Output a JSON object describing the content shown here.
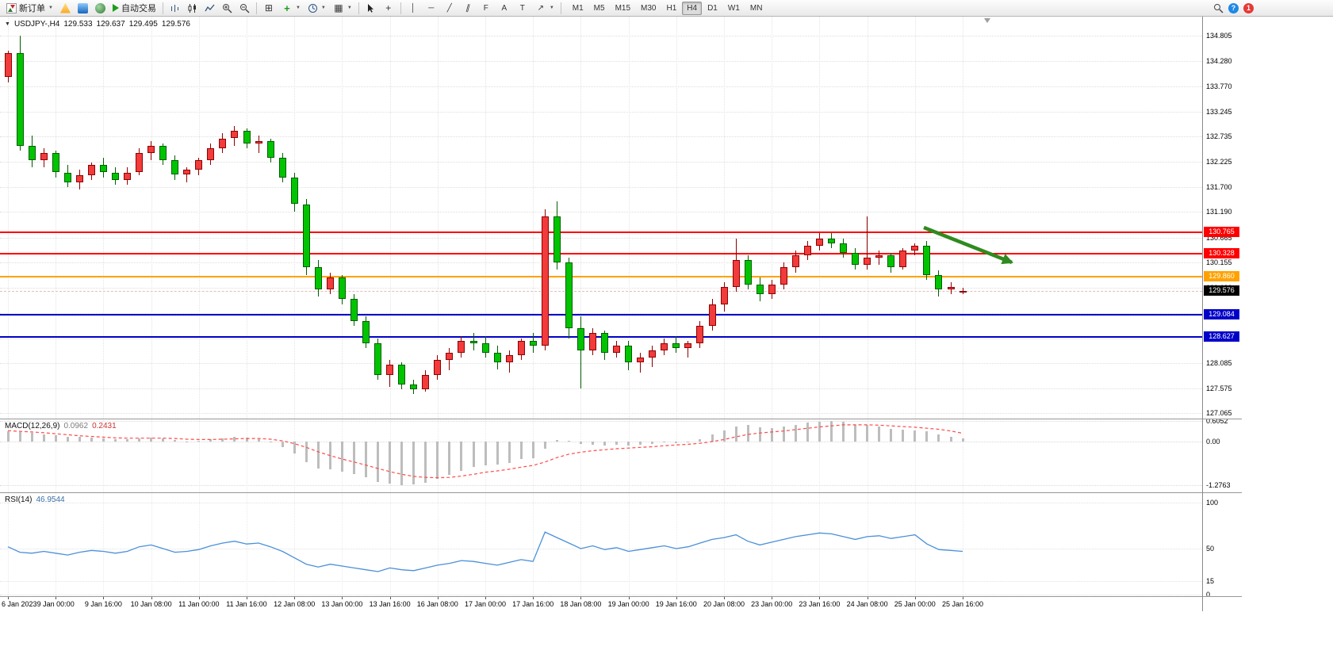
{
  "toolbar": {
    "new_order_label": "新订单",
    "autotrading_label": "自动交易",
    "timeframes": [
      "M1",
      "M5",
      "M15",
      "M30",
      "H1",
      "H4",
      "D1",
      "W1",
      "MN"
    ],
    "active_timeframe": "H4",
    "help_glyph": "?",
    "notification_count": "1"
  },
  "chart_header": {
    "symbol_period": "USDJPY-,H4",
    "open": "129.533",
    "high": "129.637",
    "low": "129.495",
    "close": "129.576"
  },
  "panels": {
    "macd": {
      "label": "MACD(12,26,9)",
      "main_value": "0.0962",
      "signal_value": "0.2431"
    },
    "rsi": {
      "label": "RSI(14)",
      "value": "46.9544"
    }
  },
  "chart_data": {
    "type": "candlestick",
    "symbol": "USDJPY-",
    "period": "H4",
    "up_color": "#f23b3b",
    "down_color": "#00c400",
    "price_axis_labels": [
      "134.805",
      "134.280",
      "133.770",
      "133.245",
      "132.735",
      "132.225",
      "131.700",
      "131.190",
      "130.665",
      "130.155",
      "129.630",
      "129.120",
      "128.595",
      "128.085",
      "127.575",
      "127.065"
    ],
    "time_labels": [
      "6 Jan 2023",
      "9 Jan 00:00",
      "9 Jan 16:00",
      "10 Jan 08:00",
      "11 Jan 00:00",
      "11 Jan 16:00",
      "12 Jan 08:00",
      "13 Jan 00:00",
      "13 Jan 16:00",
      "16 Jan 08:00",
      "17 Jan 00:00",
      "17 Jan 16:00",
      "18 Jan 08:00",
      "19 Jan 00:00",
      "19 Jan 16:00",
      "20 Jan 08:00",
      "23 Jan 00:00",
      "23 Jan 16:00",
      "24 Jan 08:00",
      "25 Jan 00:00",
      "25 Jan 16:00"
    ],
    "candles": [
      [
        133.95,
        134.5,
        133.85,
        134.45
      ],
      [
        134.45,
        134.8,
        132.45,
        132.55
      ],
      [
        132.55,
        132.75,
        132.1,
        132.25
      ],
      [
        132.25,
        132.5,
        132.1,
        132.4
      ],
      [
        132.4,
        132.45,
        131.9,
        132.0
      ],
      [
        132.0,
        132.15,
        131.7,
        131.8
      ],
      [
        131.8,
        132.05,
        131.65,
        131.95
      ],
      [
        131.95,
        132.2,
        131.85,
        132.15
      ],
      [
        132.15,
        132.3,
        131.9,
        132.0
      ],
      [
        132.0,
        132.1,
        131.75,
        131.85
      ],
      [
        131.85,
        132.1,
        131.75,
        132.0
      ],
      [
        132.0,
        132.5,
        131.95,
        132.4
      ],
      [
        132.4,
        132.65,
        132.25,
        132.55
      ],
      [
        132.55,
        132.6,
        132.15,
        132.25
      ],
      [
        132.25,
        132.35,
        131.85,
        131.95
      ],
      [
        131.95,
        132.1,
        131.8,
        132.05
      ],
      [
        132.05,
        132.3,
        131.95,
        132.25
      ],
      [
        132.25,
        132.6,
        132.15,
        132.5
      ],
      [
        132.5,
        132.8,
        132.4,
        132.7
      ],
      [
        132.7,
        132.95,
        132.55,
        132.85
      ],
      [
        132.85,
        132.9,
        132.5,
        132.6
      ],
      [
        132.6,
        132.75,
        132.4,
        132.65
      ],
      [
        132.65,
        132.7,
        132.2,
        132.3
      ],
      [
        132.3,
        132.4,
        131.8,
        131.9
      ],
      [
        131.9,
        132.0,
        131.2,
        131.35
      ],
      [
        131.35,
        131.45,
        129.9,
        130.05
      ],
      [
        130.05,
        130.2,
        129.45,
        129.6
      ],
      [
        129.6,
        129.95,
        129.5,
        129.85
      ],
      [
        129.85,
        129.9,
        129.3,
        129.4
      ],
      [
        129.4,
        129.5,
        128.85,
        128.95
      ],
      [
        128.95,
        129.05,
        128.4,
        128.5
      ],
      [
        128.5,
        128.6,
        127.75,
        127.85
      ],
      [
        127.85,
        128.15,
        127.6,
        128.05
      ],
      [
        128.05,
        128.1,
        127.55,
        127.65
      ],
      [
        127.65,
        127.75,
        127.45,
        127.55
      ],
      [
        127.55,
        127.95,
        127.5,
        127.85
      ],
      [
        127.85,
        128.25,
        127.75,
        128.15
      ],
      [
        128.15,
        128.4,
        127.95,
        128.3
      ],
      [
        128.3,
        128.65,
        128.2,
        128.55
      ],
      [
        128.55,
        128.7,
        128.35,
        128.5
      ],
      [
        128.5,
        128.65,
        128.2,
        128.3
      ],
      [
        128.3,
        128.45,
        127.95,
        128.1
      ],
      [
        128.1,
        128.35,
        127.9,
        128.25
      ],
      [
        128.25,
        128.6,
        128.15,
        128.55
      ],
      [
        128.55,
        128.7,
        128.3,
        128.45
      ],
      [
        128.45,
        131.25,
        128.35,
        131.1
      ],
      [
        131.1,
        131.4,
        130.0,
        130.15
      ],
      [
        130.15,
        130.25,
        128.6,
        128.8
      ],
      [
        128.8,
        129.05,
        127.57,
        128.35
      ],
      [
        128.35,
        128.8,
        128.25,
        128.7
      ],
      [
        128.7,
        128.75,
        128.15,
        128.3
      ],
      [
        128.3,
        128.55,
        128.2,
        128.45
      ],
      [
        128.45,
        128.55,
        127.95,
        128.1
      ],
      [
        128.1,
        128.3,
        127.9,
        128.2
      ],
      [
        128.2,
        128.45,
        128.0,
        128.35
      ],
      [
        128.35,
        128.6,
        128.25,
        128.5
      ],
      [
        128.5,
        128.65,
        128.3,
        128.4
      ],
      [
        128.4,
        128.55,
        128.2,
        128.5
      ],
      [
        128.5,
        128.95,
        128.4,
        128.85
      ],
      [
        128.85,
        129.4,
        128.75,
        129.3
      ],
      [
        129.3,
        129.75,
        129.15,
        129.65
      ],
      [
        129.65,
        130.65,
        129.55,
        130.2
      ],
      [
        130.2,
        130.3,
        129.6,
        129.7
      ],
      [
        129.7,
        129.85,
        129.35,
        129.5
      ],
      [
        129.5,
        129.8,
        129.4,
        129.7
      ],
      [
        129.7,
        130.15,
        129.6,
        130.05
      ],
      [
        130.05,
        130.4,
        129.95,
        130.3
      ],
      [
        130.3,
        130.6,
        130.2,
        130.5
      ],
      [
        130.5,
        130.75,
        130.4,
        130.65
      ],
      [
        130.65,
        130.75,
        130.45,
        130.55
      ],
      [
        130.55,
        130.65,
        130.25,
        130.35
      ],
      [
        130.35,
        130.45,
        130.0,
        130.1
      ],
      [
        130.1,
        131.1,
        130.0,
        130.25
      ],
      [
        130.25,
        130.4,
        130.1,
        130.3
      ],
      [
        130.3,
        130.35,
        129.95,
        130.05
      ],
      [
        130.05,
        130.45,
        130.0,
        130.4
      ],
      [
        130.4,
        130.55,
        130.3,
        130.5
      ],
      [
        130.5,
        130.6,
        129.8,
        129.9
      ],
      [
        129.9,
        130.0,
        129.45,
        129.6
      ],
      [
        129.6,
        129.75,
        129.5,
        129.65
      ],
      [
        129.533,
        129.637,
        129.495,
        129.576
      ]
    ],
    "levels": [
      {
        "label": "130.765",
        "value": 130.765,
        "color": "#ff0000"
      },
      {
        "label": "130.328",
        "value": 130.328,
        "color": "#ff0000"
      },
      {
        "label": "129.860",
        "value": 129.86,
        "color": "#ffa200"
      },
      {
        "label": "129.084",
        "value": 129.084,
        "color": "#0000c8"
      },
      {
        "label": "128.627",
        "value": 128.627,
        "color": "#0000c8"
      }
    ],
    "current_price": {
      "label": "129.576",
      "value": 129.576,
      "badge_color": "#000000"
    },
    "macd": {
      "axis": [
        {
          "label": "0.6052",
          "value": 0.6052
        },
        {
          "label": "0.00",
          "value": 0
        },
        {
          "label": "-1.2763",
          "value": -1.2763
        }
      ],
      "histogram": [
        0.3,
        0.28,
        0.25,
        0.22,
        0.18,
        0.15,
        0.13,
        0.12,
        0.1,
        0.08,
        0.08,
        0.1,
        0.12,
        0.1,
        0.05,
        0.0,
        0.02,
        0.06,
        0.1,
        0.14,
        0.12,
        0.08,
        -0.02,
        -0.15,
        -0.35,
        -0.6,
        -0.78,
        -0.82,
        -0.88,
        -0.95,
        -1.05,
        -1.18,
        -1.22,
        -1.27,
        -1.26,
        -1.2,
        -1.1,
        -0.98,
        -0.85,
        -0.75,
        -0.7,
        -0.68,
        -0.62,
        -0.52,
        -0.48,
        -0.2,
        0.05,
        0.02,
        -0.08,
        -0.1,
        -0.12,
        -0.1,
        -0.12,
        -0.1,
        -0.06,
        -0.02,
        -0.04,
        0.0,
        0.08,
        0.2,
        0.32,
        0.45,
        0.48,
        0.42,
        0.4,
        0.45,
        0.5,
        0.55,
        0.58,
        0.6,
        0.58,
        0.5,
        0.48,
        0.44,
        0.38,
        0.35,
        0.33,
        0.3,
        0.22,
        0.15,
        0.0962
      ],
      "signal": [
        0.32,
        0.3,
        0.28,
        0.26,
        0.23,
        0.2,
        0.17,
        0.15,
        0.13,
        0.11,
        0.1,
        0.1,
        0.1,
        0.1,
        0.09,
        0.07,
        0.06,
        0.06,
        0.07,
        0.08,
        0.09,
        0.09,
        0.07,
        0.02,
        -0.06,
        -0.17,
        -0.3,
        -0.41,
        -0.51,
        -0.6,
        -0.69,
        -0.79,
        -0.88,
        -0.96,
        -1.02,
        -1.05,
        -1.06,
        -1.05,
        -1.01,
        -0.96,
        -0.9,
        -0.86,
        -0.81,
        -0.75,
        -0.7,
        -0.6,
        -0.47,
        -0.37,
        -0.31,
        -0.27,
        -0.24,
        -0.21,
        -0.19,
        -0.17,
        -0.15,
        -0.12,
        -0.1,
        -0.08,
        -0.05,
        0.0,
        0.06,
        0.14,
        0.21,
        0.25,
        0.28,
        0.31,
        0.35,
        0.39,
        0.43,
        0.46,
        0.49,
        0.49,
        0.49,
        0.48,
        0.46,
        0.44,
        0.42,
        0.39,
        0.36,
        0.31,
        0.2431
      ]
    },
    "rsi": {
      "axis": [
        {
          "label": "100",
          "value": 100
        },
        {
          "label": "50",
          "value": 50
        },
        {
          "label": "15",
          "value": 15
        },
        {
          "label": "0",
          "value": 0
        }
      ],
      "values": [
        52,
        46,
        45,
        47,
        45,
        43,
        46,
        48,
        47,
        45,
        47,
        52,
        54,
        50,
        46,
        47,
        49,
        53,
        56,
        58,
        55,
        56,
        52,
        47,
        40,
        33,
        30,
        33,
        31,
        29,
        27,
        25,
        29,
        27,
        26,
        29,
        32,
        34,
        37,
        36,
        34,
        32,
        35,
        38,
        36,
        68,
        62,
        56,
        50,
        53,
        49,
        51,
        47,
        49,
        51,
        53,
        50,
        52,
        56,
        60,
        62,
        65,
        58,
        54,
        57,
        60,
        63,
        65,
        67,
        66,
        63,
        60,
        63,
        64,
        61,
        63,
        65,
        55,
        49,
        48,
        47
      ]
    },
    "annotation_arrow": {
      "color": "#2f8b1f",
      "direction": "down-right"
    }
  }
}
